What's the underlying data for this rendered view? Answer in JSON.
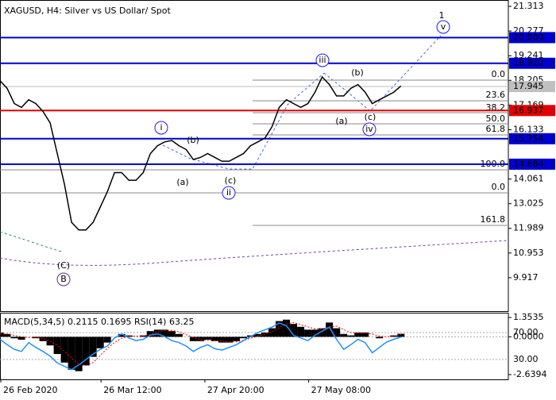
{
  "chart_data": [
    {
      "type": "line",
      "title": "XAGUSD, H4:  Silver vs US Dollar/ Spot",
      "color": "#000000",
      "x": [
        0,
        1,
        2,
        3,
        4,
        5,
        6,
        7,
        8,
        9,
        10,
        11,
        12,
        13,
        14,
        15,
        16,
        17,
        18,
        19,
        20,
        21,
        22,
        23,
        24,
        25,
        26,
        27,
        28,
        29,
        30,
        31,
        32,
        33,
        34,
        35,
        36,
        37,
        38,
        39,
        40,
        41,
        42,
        43,
        44,
        45,
        46,
        47,
        48,
        49,
        50,
        51,
        52,
        53,
        54,
        55,
        56
      ],
      "values": [
        18.19,
        17.87,
        17.23,
        17.07,
        17.39,
        17.23,
        16.9,
        16.42,
        15.13,
        13.85,
        12.24,
        11.92,
        11.92,
        12.24,
        12.88,
        13.53,
        14.33,
        14.33,
        14.01,
        14.01,
        14.33,
        15.13,
        15.46,
        15.62,
        15.68,
        15.46,
        15.3,
        14.88,
        14.97,
        15.13,
        14.97,
        14.81,
        14.81,
        14.97,
        15.13,
        15.46,
        15.62,
        15.78,
        16.26,
        17.07,
        17.39,
        17.23,
        17.07,
        17.23,
        17.71,
        18.35,
        18.03,
        17.55,
        17.55,
        17.87,
        18.03,
        17.71,
        17.23,
        17.39,
        17.55,
        17.71,
        17.97
      ],
      "xlim": [
        0,
        71
      ],
      "xticks": [
        {
          "value": 0,
          "label": "26 Feb 2020"
        },
        {
          "value": 14,
          "label": "26 Mar 12:00"
        },
        {
          "value": 28.5,
          "label": "27 Apr 20:00"
        },
        {
          "value": 43,
          "label": "27 May 08:00"
        }
      ],
      "ylim": [
        8.513,
        21.58
      ],
      "yticks": [
        21.313,
        20.277,
        19.241,
        18.205,
        17.169,
        16.133,
        14.061,
        13.025,
        11.989,
        10.953,
        9.917
      ],
      "last_price": 17.945,
      "levels": {
        "values": [
          20.0,
          18.922,
          16.937,
          15.754,
          14.684
        ],
        "value_labels": [
          "20.000",
          "18.922",
          "16.937",
          "15.754",
          "14.684"
        ],
        "colors": [
          "#0000cd",
          "#0000cd",
          "#e00000",
          "#0000cd",
          "#0000cd"
        ]
      },
      "wave_labels": [
        "1",
        "v",
        "iii",
        "(b)",
        "(a)",
        "(c)",
        "iv",
        "i",
        "(b)",
        "(a)",
        "(c)",
        "ii",
        "(C)",
        "B"
      ],
      "fib_labels": [
        "0.0",
        "23.6",
        "38.2",
        "50.0",
        "61.8",
        "100.0",
        "0.0",
        "161.8"
      ]
    },
    {
      "type": "macd",
      "title": "MACD(5,34,5) 0.2115 0.1695 RSI(14) 63.25",
      "series": [
        {
          "type": "bar",
          "color": "#000000",
          "values": [
            0.3,
            0.2,
            -0.1,
            -0.2,
            0.0,
            -0.1,
            -0.3,
            -0.6,
            -1.2,
            -1.8,
            -2.3,
            -2.4,
            -2.0,
            -1.4,
            -0.8,
            -0.4,
            0.0,
            0.2,
            0.1,
            0.0,
            0.1,
            0.4,
            0.5,
            0.5,
            0.4,
            0.2,
            0.0,
            -0.3,
            -0.3,
            -0.2,
            -0.3,
            -0.4,
            -0.4,
            -0.3,
            -0.1,
            0.1,
            0.2,
            0.3,
            0.6,
            1.1,
            1.2,
            0.9,
            0.7,
            0.5,
            0.5,
            0.6,
            1.0,
            0.6,
            0.2,
            0.1,
            0.3,
            0.3,
            0.0,
            -0.1,
            0.0,
            0.1,
            0.2115
          ]
        },
        {
          "type": "line",
          "color": "#ff0000",
          "dashed": true,
          "values": [
            0.2,
            0.2,
            0.1,
            0.0,
            -0.05,
            -0.05,
            -0.1,
            -0.3,
            -0.6,
            -1.0,
            -1.5,
            -1.9,
            -2.0,
            -1.8,
            -1.3,
            -0.8,
            -0.4,
            -0.1,
            0.05,
            0.05,
            0.05,
            0.2,
            0.35,
            0.45,
            0.45,
            0.35,
            0.15,
            -0.05,
            -0.2,
            -0.25,
            -0.25,
            -0.3,
            -0.35,
            -0.35,
            -0.25,
            -0.1,
            0.05,
            0.2,
            0.35,
            0.65,
            0.9,
            1.0,
            0.85,
            0.7,
            0.55,
            0.55,
            0.7,
            0.75,
            0.5,
            0.3,
            0.25,
            0.25,
            0.2,
            0.05,
            0.0,
            0.05,
            0.1695
          ]
        },
        {
          "type": "line",
          "color": "#1e90ff",
          "axis": "y2",
          "values": [
            60,
            52,
            45,
            42,
            55,
            48,
            42,
            35,
            25,
            20,
            15,
            22,
            30,
            38,
            45,
            50,
            62,
            68,
            62,
            58,
            60,
            66,
            68,
            64,
            58,
            55,
            50,
            42,
            48,
            52,
            46,
            44,
            48,
            52,
            58,
            64,
            70,
            74,
            78,
            84,
            80,
            66,
            62,
            58,
            66,
            72,
            78,
            60,
            45,
            52,
            60,
            55,
            40,
            48,
            56,
            60,
            63.25
          ]
        }
      ],
      "ylim": [
        -2.972,
        1.631
      ],
      "yticks": [
        1.3535,
        {
          "value": 0,
          "label": "0.0000"
        },
        -2.6394
      ],
      "y2lim": [
        0.6,
        98.2
      ],
      "y2ticks": [
        {
          "value": 70,
          "label": "70.00"
        },
        {
          "value": 30,
          "label": "30.00"
        }
      ]
    }
  ]
}
